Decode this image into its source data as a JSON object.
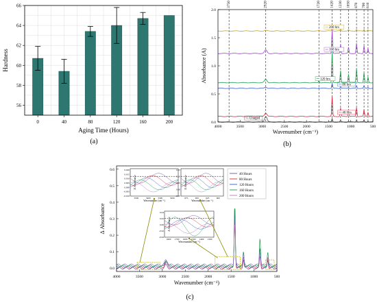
{
  "panels": {
    "a": "(a)",
    "b": "(b)",
    "c": "(c)"
  },
  "chart_data": [
    {
      "type": "bar",
      "panel": "(a)",
      "categories": [
        "0",
        "40",
        "80",
        "120",
        "160",
        "200"
      ],
      "values": [
        60.7,
        59.4,
        63.4,
        64.0,
        64.7,
        65.0
      ],
      "errors": [
        1.2,
        1.2,
        0.5,
        1.8,
        0.6,
        0.0
      ],
      "xlabel": "Aging Time (Hours)",
      "ylabel": "Hardness",
      "ylim": [
        55,
        66
      ],
      "yticks": [
        "56",
        "58",
        "60",
        "62",
        "64",
        "66"
      ],
      "grid": true,
      "colors": {
        "bar": "#2e7670",
        "error": "#000000"
      }
    },
    {
      "type": "line",
      "panel": "(b)",
      "xlabel": "Wavenumber (cm⁻¹)",
      "ylabel": "Absorbance (A)",
      "xlim": [
        4000,
        500
      ],
      "ylim": [
        0,
        2.0
      ],
      "xticks": [
        "4000",
        "3500",
        "3000",
        "2500",
        "2000",
        "1500",
        "1000",
        "500"
      ],
      "yticks": [
        "0.0",
        "0.5",
        "1.0",
        "1.5",
        "2.0"
      ],
      "top_ticks": [
        "3750",
        "2920",
        "1720",
        "1420",
        "1230",
        "1050",
        "870",
        "700",
        "610"
      ],
      "ref_lines": [
        3750,
        2920,
        1720,
        1420,
        1230,
        1050,
        870,
        700,
        610
      ],
      "series": [
        {
          "name": "Unaged",
          "color": "#555555",
          "offset": 0.0,
          "labelX": 3400
        },
        {
          "name": "40 Hrs",
          "color": "#d9233a",
          "offset": 0.1,
          "labelX": 1300
        },
        {
          "name": "80 hrs",
          "color": "#2e5cc8",
          "offset": 0.6,
          "labelX": 1300
        },
        {
          "name": "120 hrs",
          "color": "#1a9b4a",
          "offset": 0.7,
          "labelX": 1800
        },
        {
          "name": "160 hrs",
          "color": "#9a48c8",
          "offset": 1.22,
          "labelX": 1600
        },
        {
          "name": "200 hrs",
          "color": "#c9a01e",
          "offset": 1.62,
          "labelX": 1600
        }
      ],
      "peaks": [
        {
          "wn": 2920,
          "amp": [
            0.1,
            0.06,
            0.02,
            0.06,
            0.06,
            0.01
          ]
        },
        {
          "wn": 1720,
          "amp": [
            0.0,
            0.01,
            0.01,
            0.04,
            0.01,
            0.01
          ]
        },
        {
          "wn": 1420,
          "amp": [
            0.06,
            0.35,
            0.08,
            0.55,
            0.42,
            0.06
          ]
        },
        {
          "wn": 1230,
          "amp": [
            0.03,
            0.15,
            0.03,
            0.22,
            0.17,
            0.03
          ]
        },
        {
          "wn": 1050,
          "amp": [
            0.02,
            0.1,
            0.02,
            0.15,
            0.11,
            0.02
          ]
        },
        {
          "wn": 870,
          "amp": [
            0.04,
            0.16,
            0.04,
            0.25,
            0.18,
            0.03
          ]
        },
        {
          "wn": 700,
          "amp": [
            0.04,
            0.12,
            0.04,
            0.18,
            0.14,
            0.03
          ]
        },
        {
          "wn": 610,
          "amp": [
            0.02,
            0.08,
            0.02,
            0.1,
            0.09,
            0.02
          ]
        }
      ]
    },
    {
      "type": "line",
      "panel": "(c)",
      "xlabel": "Wavenumber (cm⁻¹)",
      "ylabel": "Δ Absorbance",
      "xlim": [
        4000,
        500
      ],
      "ylim": [
        -0.02,
        0.62
      ],
      "xticks": [
        "4000",
        "3500",
        "3000",
        "2500",
        "2000",
        "1500",
        "1000",
        "500"
      ],
      "yticks": [
        "0.0",
        "0.1",
        "0.2",
        "0.3",
        "0.4",
        "0.5",
        "0.6"
      ],
      "series": [
        {
          "name": "40 Hours",
          "color": "#6a4fa0"
        },
        {
          "name": "80 Hours",
          "color": "#d9233a"
        },
        {
          "name": "120 Hours",
          "color": "#2e5cc8"
        },
        {
          "name": "160 Hours",
          "color": "#1a9b4a"
        },
        {
          "name": "200 Hours",
          "color": "#b07ad0"
        }
      ],
      "peaks": [
        {
          "wn": 2920,
          "amp": [
            0.02,
            0.03,
            0.04,
            0.03,
            0.03
          ]
        },
        {
          "wn": 1420,
          "amp": [
            0.38,
            0.3,
            0.32,
            0.36,
            0.26
          ]
        },
        {
          "wn": 1230,
          "amp": [
            0.1,
            0.05,
            0.06,
            0.08,
            0.06
          ]
        },
        {
          "wn": 870,
          "amp": [
            0.12,
            0.06,
            0.08,
            0.17,
            0.08
          ]
        },
        {
          "wn": 700,
          "amp": [
            0.06,
            0.04,
            0.05,
            0.08,
            0.05
          ]
        }
      ],
      "insets": [
        {
          "xlabel": "Wavenumber (cm⁻¹)",
          "ylabel": "Δ Absorbance",
          "xticks": [
            "3500",
            "3400",
            "3300",
            "3200"
          ],
          "yticks": [
            "0.020",
            "0.015",
            "0.010",
            "0.005",
            "0.000",
            "-0.005",
            "-0.010"
          ]
        },
        {
          "xlabel": "Wavenumber (cm⁻¹)",
          "ylabel": "Δ Absorbance",
          "xticks": [
            "675",
            "650",
            "625",
            "600"
          ],
          "yticks": [
            "0.15",
            "0.10",
            "0.05",
            "0.00",
            "-0.05"
          ]
        },
        {
          "xlabel": "Wavenumber (cm⁻¹)",
          "ylabel": "Δ Absorbance",
          "xticks": [
            "1800",
            "1700",
            "1600",
            "1500",
            "1400",
            "1300"
          ],
          "yticks": [
            "0.04",
            "0.02",
            "0.00",
            "-0.02",
            "-0.04"
          ]
        }
      ]
    }
  ]
}
